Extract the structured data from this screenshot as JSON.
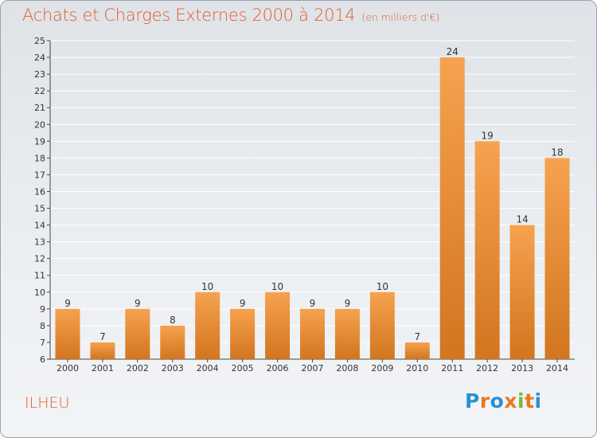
{
  "header": {
    "title": "Achats et Charges Externes 2000 à 2014",
    "subtitle": "(en milliers d'€)"
  },
  "footer": {
    "commune": "ILHEU",
    "logo": {
      "letters": [
        "P",
        "r",
        "o",
        "x",
        "i",
        "t",
        "i"
      ],
      "colors": [
        "#2a8fd6",
        "#e8791b",
        "#2a8fd6",
        "#e8791b",
        "#7cb82f",
        "#e8791b",
        "#2a8fd6"
      ]
    }
  },
  "colors": {
    "bar_light": "#f6a24f",
    "bar_dark": "#d2751f",
    "title": "#e05f2c",
    "grid": "#ffffff"
  },
  "chart_data": {
    "type": "bar",
    "categories": [
      "2000",
      "2001",
      "2002",
      "2003",
      "2004",
      "2005",
      "2006",
      "2007",
      "2008",
      "2009",
      "2010",
      "2011",
      "2012",
      "2013",
      "2014"
    ],
    "values": [
      9,
      7,
      9,
      8,
      10,
      9,
      10,
      9,
      9,
      10,
      7,
      24,
      19,
      14,
      18
    ],
    "title": "Achats et Charges Externes 2000 à 2014",
    "xlabel": "",
    "ylabel": "",
    "ylim": [
      6,
      25
    ],
    "yticks": [
      6,
      7,
      8,
      9,
      10,
      11,
      12,
      13,
      14,
      15,
      16,
      17,
      18,
      19,
      20,
      21,
      22,
      23,
      24,
      25
    ],
    "grid": true,
    "legend": "none"
  }
}
